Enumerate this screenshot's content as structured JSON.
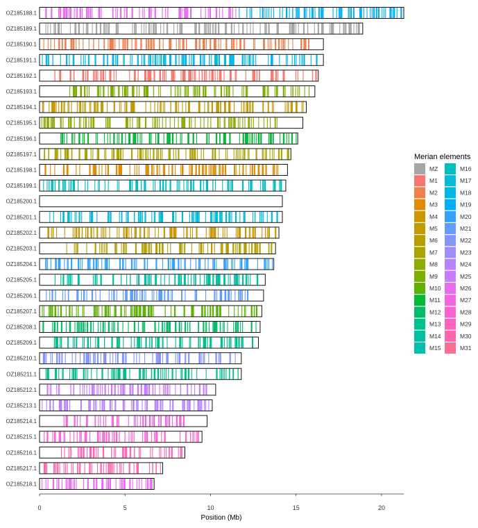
{
  "chart_data": {
    "type": "chromosome-painting",
    "xlabel": "Position (Mb)",
    "xlim": [
      0,
      21.3
    ],
    "xticks": [
      0,
      5,
      10,
      15,
      20
    ],
    "legend": {
      "title": "Merian elements",
      "placement": "right",
      "entries": [
        {
          "label": "MZ",
          "color": "#A6A6A6"
        },
        {
          "label": "M1",
          "color": "#F8766D"
        },
        {
          "label": "M2",
          "color": "#EF7F4B"
        },
        {
          "label": "M3",
          "color": "#DE8C00"
        },
        {
          "label": "M4",
          "color": "#CD9600"
        },
        {
          "label": "M5",
          "color": "#C49A00"
        },
        {
          "label": "M6",
          "color": "#B79F00"
        },
        {
          "label": "M7",
          "color": "#ABA300"
        },
        {
          "label": "M8",
          "color": "#8DAB00"
        },
        {
          "label": "M9",
          "color": "#7CAE00"
        },
        {
          "label": "M10",
          "color": "#5BB300"
        },
        {
          "label": "M11",
          "color": "#00BA38"
        },
        {
          "label": "M12",
          "color": "#00BE67"
        },
        {
          "label": "M13",
          "color": "#00C08B"
        },
        {
          "label": "M14",
          "color": "#00C19F"
        },
        {
          "label": "M15",
          "color": "#00BFAE"
        },
        {
          "label": "M16",
          "color": "#00BFC4"
        },
        {
          "label": "M17",
          "color": "#00BCD8"
        },
        {
          "label": "M18",
          "color": "#00B8E7"
        },
        {
          "label": "M19",
          "color": "#00B0F6"
        },
        {
          "label": "M20",
          "color": "#35A2FF"
        },
        {
          "label": "M21",
          "color": "#619CFF"
        },
        {
          "label": "M22",
          "color": "#8494FF"
        },
        {
          "label": "M23",
          "color": "#9F8CFF"
        },
        {
          "label": "M24",
          "color": "#B983FF"
        },
        {
          "label": "M25",
          "color": "#C77CFF"
        },
        {
          "label": "M26",
          "color": "#E76BF3"
        },
        {
          "label": "M27",
          "color": "#F564E3"
        },
        {
          "label": "M28",
          "color": "#FD61D1"
        },
        {
          "label": "M29",
          "color": "#FF62BC"
        },
        {
          "label": "M30",
          "color": "#FF65AE"
        },
        {
          "label": "M31",
          "color": "#FF6C91"
        }
      ]
    },
    "chromosomes": [
      {
        "name": "OZ185188.1",
        "length": 21.3,
        "element": "M26",
        "extra": "M19",
        "start": 0.3,
        "end": 11.5,
        "sstart": 11.5,
        "send": 21.2,
        "seed": 188
      },
      {
        "name": "OZ185189.1",
        "length": 18.9,
        "element": "MZ",
        "start": 0.2,
        "end": 18.8,
        "seed": 189
      },
      {
        "name": "OZ185190.1",
        "length": 16.6,
        "element": "M2",
        "start": 0.1,
        "end": 16.0,
        "seed": 190
      },
      {
        "name": "OZ185191.1",
        "length": 16.6,
        "element": "M18",
        "start": 0.1,
        "end": 16.5,
        "seed": 191
      },
      {
        "name": "OZ185192.1",
        "length": 16.3,
        "element": "M1",
        "start": 0.5,
        "end": 16.2,
        "seed": 192
      },
      {
        "name": "OZ185193.1",
        "length": 16.1,
        "element": "M9",
        "start": 1.5,
        "end": 16.0,
        "seed": 193
      },
      {
        "name": "OZ185194.1",
        "length": 15.6,
        "element": "M5",
        "start": 0.1,
        "end": 15.5,
        "seed": 194
      },
      {
        "name": "OZ185195.1",
        "length": 15.4,
        "element": "M8",
        "start": 0.1,
        "end": 14.0,
        "seed": 195
      },
      {
        "name": "OZ185196.1",
        "length": 15.1,
        "element": "M11",
        "start": 1.1,
        "end": 15.0,
        "seed": 196
      },
      {
        "name": "OZ185197.1",
        "length": 14.7,
        "element": "M7",
        "start": 0.2,
        "end": 14.6,
        "seed": 197
      },
      {
        "name": "OZ185198.1",
        "length": 14.5,
        "element": "M3",
        "start": 0.1,
        "end": 14.0,
        "seed": 198
      },
      {
        "name": "OZ185199.1",
        "length": 14.4,
        "element": "M16",
        "start": 0.1,
        "end": 14.3,
        "seed": 199
      },
      {
        "name": "OZ185200.1",
        "length": 14.2,
        "element": "",
        "start": 0,
        "end": 0,
        "seed": 200
      },
      {
        "name": "OZ185201.1",
        "length": 14.2,
        "element": "M17",
        "start": 0.5,
        "end": 14.1,
        "seed": 201
      },
      {
        "name": "OZ185202.1",
        "length": 14.0,
        "element": "M4",
        "start": 0.1,
        "end": 13.8,
        "seed": 202
      },
      {
        "name": "OZ185203.1",
        "length": 13.8,
        "element": "M6",
        "start": 1.2,
        "end": 13.7,
        "seed": 203
      },
      {
        "name": "OZ185204.1",
        "length": 13.7,
        "element": "M20",
        "start": 0.1,
        "end": 13.6,
        "seed": 204
      },
      {
        "name": "OZ185205.1",
        "length": 13.2,
        "element": "M14",
        "start": 0.8,
        "end": 13.0,
        "seed": 205
      },
      {
        "name": "OZ185206.1",
        "length": 13.1,
        "element": "M21",
        "start": 0.3,
        "end": 12.3,
        "seed": 206
      },
      {
        "name": "OZ185207.1",
        "length": 13.0,
        "element": "M10",
        "start": 0.1,
        "end": 12.7,
        "seed": 207
      },
      {
        "name": "OZ185208.1",
        "length": 12.9,
        "element": "M12",
        "start": 0.1,
        "end": 12.8,
        "seed": 208
      },
      {
        "name": "OZ185209.1",
        "length": 12.8,
        "element": "M13",
        "start": 0.8,
        "end": 12.6,
        "seed": 209
      },
      {
        "name": "OZ185210.1",
        "length": 11.8,
        "element": "M22",
        "start": 0.1,
        "end": 11.5,
        "seed": 210
      },
      {
        "name": "OZ185211.1",
        "length": 11.8,
        "element": "M13",
        "start": 0.1,
        "end": 11.7,
        "seed": 211
      },
      {
        "name": "OZ185212.1",
        "length": 10.3,
        "element": "M25",
        "start": 0.1,
        "end": 10.1,
        "seed": 212
      },
      {
        "name": "OZ185213.1",
        "length": 10.1,
        "element": "M24",
        "start": 0.1,
        "end": 10.0,
        "seed": 213
      },
      {
        "name": "OZ185214.1",
        "length": 9.8,
        "element": "M27",
        "start": 1.3,
        "end": 8.4,
        "seed": 214
      },
      {
        "name": "OZ185215.1",
        "length": 9.5,
        "element": "M28",
        "start": 0.1,
        "end": 9.3,
        "seed": 215
      },
      {
        "name": "OZ185216.1",
        "length": 8.5,
        "element": "M29",
        "start": 1.2,
        "end": 8.4,
        "seed": 216
      },
      {
        "name": "OZ185217.1",
        "length": 7.2,
        "element": "M30",
        "start": 0.1,
        "end": 7.1,
        "seed": 217
      },
      {
        "name": "OZ185218.1",
        "length": 6.7,
        "element": "M26",
        "start": 0.1,
        "end": 6.6,
        "seed": 218
      }
    ]
  }
}
